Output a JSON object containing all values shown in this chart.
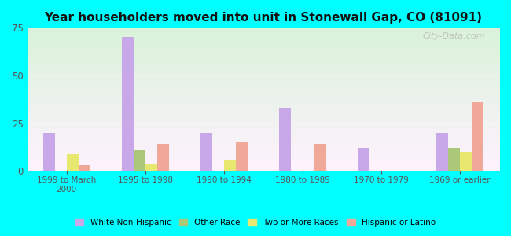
{
  "title": "Year householders moved into unit in Stonewall Gap, CO (81091)",
  "categories": [
    "1999 to March\n2000",
    "1995 to 1998",
    "1990 to 1994",
    "1980 to 1989",
    "1970 to 1979",
    "1969 or earlier"
  ],
  "series": {
    "White Non-Hispanic": [
      20,
      70,
      20,
      33,
      12,
      20
    ],
    "Other Race": [
      0,
      11,
      0,
      0,
      0,
      12
    ],
    "Two or More Races": [
      9,
      4,
      6,
      0,
      0,
      10
    ],
    "Hispanic or Latino": [
      3,
      14,
      15,
      14,
      0,
      36
    ]
  },
  "colors": {
    "White Non-Hispanic": "#c8a8e8",
    "Other Race": "#aac878",
    "Two or More Races": "#e8e870",
    "Hispanic or Latino": "#f0a898"
  },
  "ylim": [
    0,
    75
  ],
  "yticks": [
    0,
    25,
    50,
    75
  ],
  "outer_bg": "#00ffff",
  "watermark": "City-Data.com",
  "bar_width": 0.15,
  "title_fontsize": 11
}
